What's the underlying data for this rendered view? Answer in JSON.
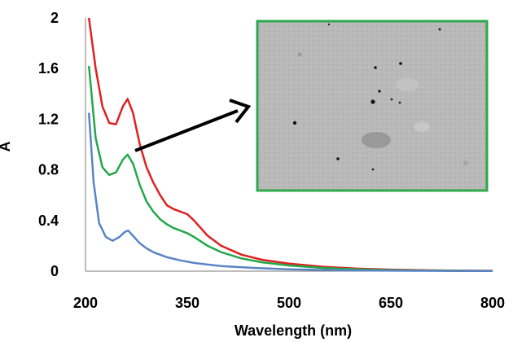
{
  "chart_data": {
    "type": "line",
    "xlabel": "Wavelength (nm)",
    "ylabel": "A",
    "xlim": [
      200,
      800
    ],
    "ylim": [
      0,
      2
    ],
    "x_ticks": [
      "200",
      "350",
      "500",
      "650",
      "800"
    ],
    "y_ticks": [
      "0",
      "0.4",
      "0.8",
      "1.2",
      "1.6",
      "2"
    ],
    "grid": false,
    "legend": "none",
    "inset": "TEM micrograph of nanoparticles with green border, pointed to by arrow from green curve peak",
    "series": [
      {
        "color": "#e02020",
        "x": [
          205,
          215,
          225,
          235,
          245,
          255,
          262,
          270,
          280,
          290,
          300,
          310,
          320,
          330,
          340,
          350,
          360,
          380,
          400,
          430,
          460,
          500,
          550,
          600,
          650,
          700,
          750,
          800
        ],
        "y": [
          2.0,
          1.6,
          1.3,
          1.17,
          1.16,
          1.3,
          1.36,
          1.25,
          1.0,
          0.82,
          0.7,
          0.6,
          0.52,
          0.49,
          0.47,
          0.45,
          0.4,
          0.28,
          0.2,
          0.13,
          0.09,
          0.06,
          0.035,
          0.02,
          0.012,
          0.007,
          0.004,
          0.003
        ]
      },
      {
        "color": "#22a84a",
        "x": [
          205,
          215,
          225,
          235,
          245,
          255,
          262,
          270,
          280,
          290,
          300,
          310,
          320,
          330,
          340,
          350,
          360,
          380,
          400,
          430,
          460,
          500,
          550,
          600,
          650,
          700,
          750,
          800
        ],
        "y": [
          1.62,
          1.05,
          0.82,
          0.76,
          0.78,
          0.88,
          0.92,
          0.85,
          0.68,
          0.55,
          0.47,
          0.41,
          0.37,
          0.34,
          0.32,
          0.3,
          0.27,
          0.2,
          0.15,
          0.1,
          0.07,
          0.045,
          0.025,
          0.014,
          0.008,
          0.005,
          0.003,
          0.002
        ]
      },
      {
        "color": "#5b84c4",
        "x": [
          205,
          212,
          220,
          230,
          240,
          250,
          258,
          263,
          270,
          280,
          290,
          300,
          320,
          340,
          360,
          400,
          450,
          500,
          550,
          600,
          650,
          700,
          750,
          800
        ],
        "y": [
          1.25,
          0.7,
          0.38,
          0.27,
          0.24,
          0.27,
          0.31,
          0.32,
          0.28,
          0.22,
          0.18,
          0.15,
          0.11,
          0.085,
          0.065,
          0.04,
          0.025,
          0.015,
          0.009,
          0.006,
          0.004,
          0.003,
          0.002,
          0.001
        ]
      }
    ]
  }
}
